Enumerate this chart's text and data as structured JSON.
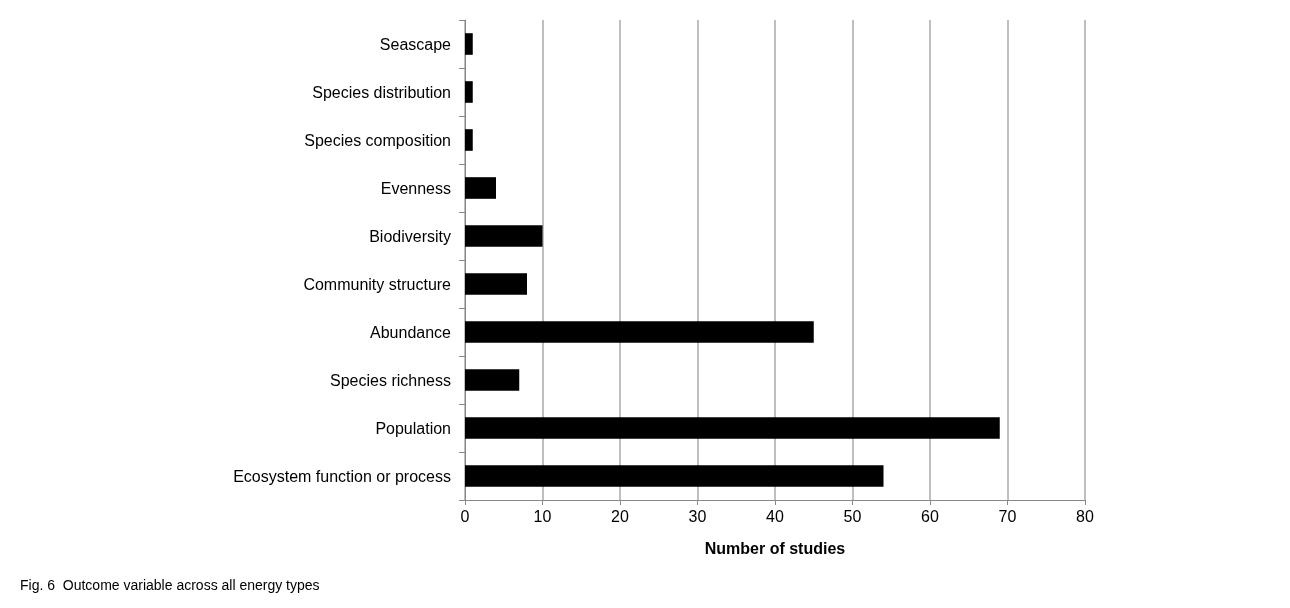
{
  "chart_data": {
    "type": "bar",
    "orientation": "horizontal",
    "categories": [
      "Seascape",
      "Species distribution",
      "Species composition",
      "Evenness",
      "Biodiversity",
      "Community structure",
      "Abundance",
      "Species richness",
      "Population",
      "Ecosystem function or process"
    ],
    "values": [
      1,
      1,
      1,
      4,
      10,
      8,
      45,
      7,
      69,
      54
    ],
    "color": "#000000",
    "xlabel": "Number of studies",
    "xlim": [
      0,
      80
    ],
    "xticks": [
      0,
      10,
      20,
      30,
      40,
      50,
      60,
      70,
      80
    ],
    "grid": "x",
    "annotations": [
      "Fig. 6  Outcome variable across all energy types"
    ]
  }
}
